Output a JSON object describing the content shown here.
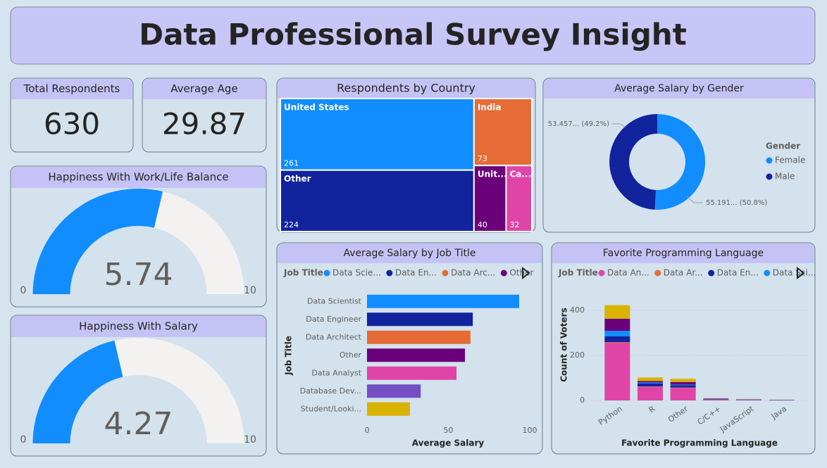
{
  "title": "Data Professional Survey Insight",
  "cards": [
    {
      "label": "Total Respondents",
      "value": 630
    },
    {
      "label": "Average Age",
      "value": 29.87
    }
  ],
  "chart_data": [
    {
      "type": "gauge",
      "title": "Happiness With Work/Life Balance",
      "value": 5.74,
      "range": [
        0,
        10
      ],
      "color": "#118dff",
      "track_color": "#f3f2f1"
    },
    {
      "type": "gauge",
      "title": "Happiness With Salary",
      "value": 4.27,
      "range": [
        0,
        10
      ],
      "color": "#118dff",
      "track_color": "#f3f2f1"
    },
    {
      "type": "treemap",
      "title": "Respondents by Country",
      "categories": [
        "United States",
        "Other",
        "India",
        "Unit...",
        "Ca..."
      ],
      "values": [
        261,
        224,
        73,
        40,
        32
      ],
      "colors": [
        "#118dff",
        "#12239e",
        "#e66c37",
        "#6b007b",
        "#e044a7"
      ]
    },
    {
      "type": "donut",
      "title": "Average Salary by Gender",
      "legend_title": "Gender",
      "categories": [
        "Female",
        "Male"
      ],
      "values": [
        55.191,
        53.457
      ],
      "value_labels": [
        "55.191... (50.8%)",
        "53.457... (49.2%)"
      ],
      "colors": [
        "#118dff",
        "#12239e"
      ]
    },
    {
      "type": "hbar",
      "title": "Average Salary by Job Title",
      "legend_title": "Job Title",
      "legend": [
        {
          "name": "Data Scie...",
          "color": "#118dff"
        },
        {
          "name": "Data En...",
          "color": "#12239e"
        },
        {
          "name": "Data Arc...",
          "color": "#e66c37"
        },
        {
          "name": "Other",
          "color": "#6b007b"
        }
      ],
      "categories": [
        "Data Scientist",
        "Data Engineer",
        "Data Architect",
        "Other",
        "Data Analyst",
        "Database Dev...",
        "Student/Looki..."
      ],
      "values": [
        93.5,
        65,
        63.6,
        60.2,
        55,
        33,
        26.4
      ],
      "colors": [
        "#118dff",
        "#12239e",
        "#e66c37",
        "#6b007b",
        "#e044a7",
        "#744ec2",
        "#d9b300"
      ],
      "xlim": [
        0,
        100
      ],
      "xticks": [
        0,
        50,
        100
      ],
      "x_label": "Average Salary",
      "y_label": "Job Title"
    },
    {
      "type": "stacked_bar",
      "title": "Favorite Programming Language",
      "legend_title": "Job Title",
      "categories": [
        "Python",
        "R",
        "Other",
        "C/C++",
        "JavaScript",
        "Java"
      ],
      "series": [
        {
          "name": "Data An...",
          "color": "#e044a7",
          "values": [
            256,
            60,
            55,
            3,
            2,
            1
          ]
        },
        {
          "name": "Data Ar...",
          "color": "#e66c37",
          "values": [
            3,
            2,
            2,
            1,
            0,
            0
          ]
        },
        {
          "name": "Data En...",
          "color": "#12239e",
          "values": [
            26,
            14,
            10,
            2,
            1,
            1
          ]
        },
        {
          "name": "Data Sci...",
          "color": "#118dff",
          "values": [
            24,
            4,
            3,
            1,
            1,
            0
          ]
        },
        {
          "color": "#6b007b",
          "values": [
            54,
            6,
            12,
            2,
            1,
            1
          ]
        },
        {
          "color": "#d9b300",
          "values": [
            60,
            16,
            14,
            1,
            1,
            0
          ]
        }
      ],
      "ylim": [
        0,
        450
      ],
      "yticks": [
        0,
        200,
        400
      ],
      "grid": true,
      "x_label": "Favorite Programming Language",
      "y_label": "Count of Voters"
    }
  ]
}
